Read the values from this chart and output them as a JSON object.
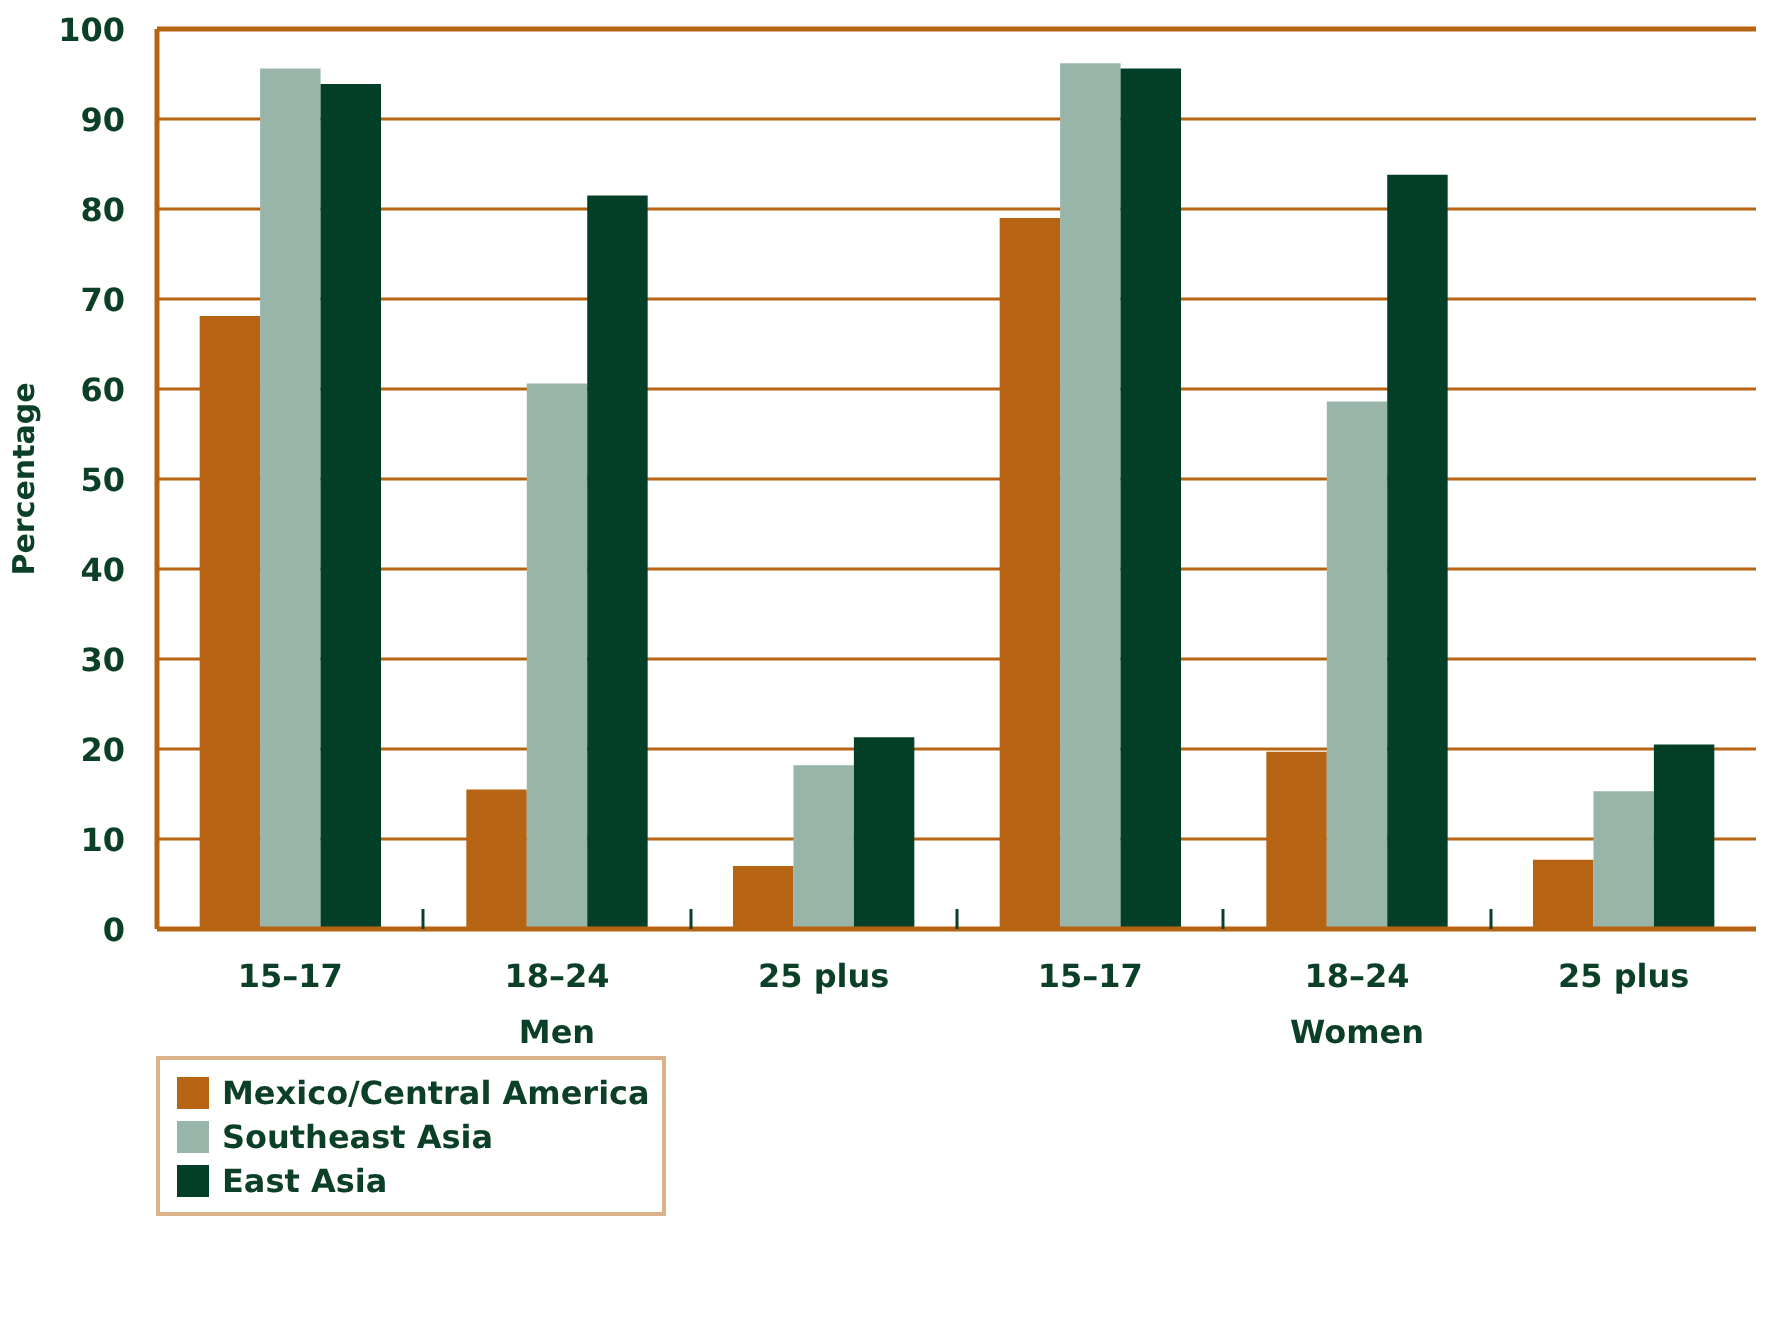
{
  "chart_data": {
    "type": "bar",
    "ylabel": "Percentage",
    "categories": [
      "15–17",
      "18–24",
      "25 plus",
      "15–17",
      "18–24",
      "25 plus"
    ],
    "annotations": [
      "Men",
      "Women"
    ],
    "series": [
      {
        "name": "Mexico/Central America",
        "color": "#b66413",
        "values": [
          68.1,
          15.5,
          7.0,
          79.0,
          19.7,
          7.7
        ]
      },
      {
        "name": "Southeast Asia",
        "color": "#97b5a8",
        "values": [
          95.6,
          60.6,
          18.2,
          96.2,
          58.6,
          15.3
        ]
      },
      {
        "name": "East Asia",
        "color": "#023f26",
        "values": [
          93.9,
          81.5,
          21.3,
          95.6,
          83.8,
          20.5
        ]
      }
    ],
    "ylim": [
      0,
      100
    ],
    "yticks": [
      0,
      10,
      20,
      30,
      40,
      50,
      60,
      70,
      80,
      90,
      100
    ],
    "grid": "y",
    "legend": "bottom left"
  }
}
